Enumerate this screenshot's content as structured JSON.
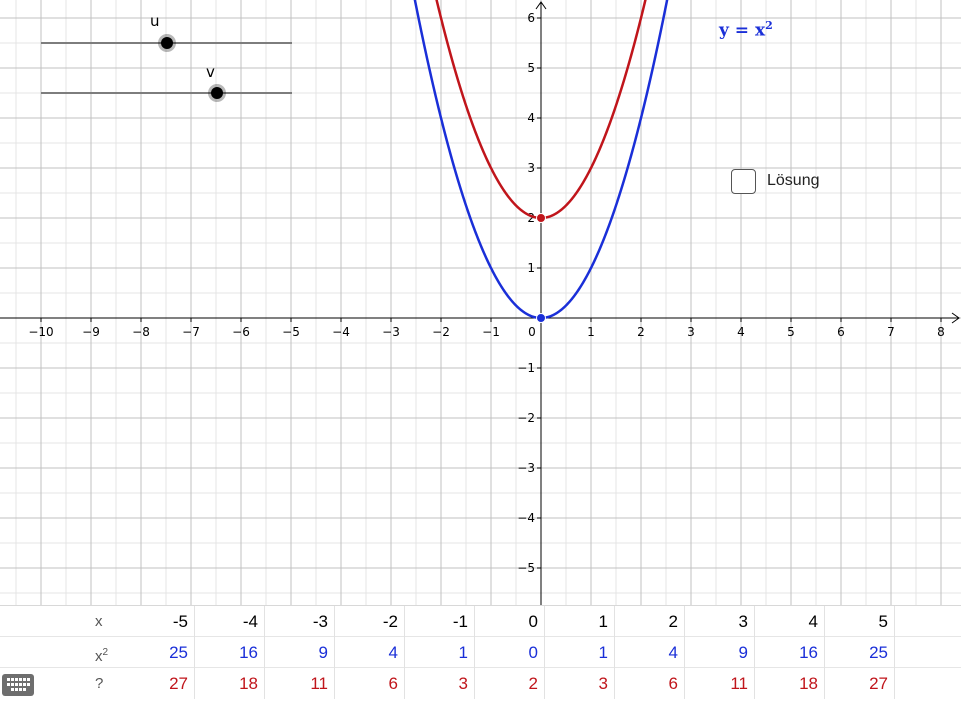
{
  "graph": {
    "x_axis_ticks": [
      "−10",
      "−9",
      "−8",
      "−7",
      "−6",
      "−5",
      "−4",
      "−3",
      "−2",
      "−1",
      "0",
      "1",
      "2",
      "3",
      "4",
      "5",
      "6",
      "7",
      "8"
    ],
    "y_axis_ticks_pos": [
      "1",
      "2",
      "3",
      "4",
      "5",
      "6"
    ],
    "y_axis_ticks_neg": [
      "−1",
      "−2",
      "−3",
      "−4",
      "−5"
    ],
    "x_range": [
      -10.9,
      8.4
    ],
    "y_range": [
      -5.75,
      6.35
    ],
    "grid": true,
    "functions": [
      {
        "name": "blue-parabola",
        "color": "#1a2fd8",
        "a": 1,
        "c": 0
      },
      {
        "name": "red-parabola",
        "color": "#c0151b",
        "a": 1,
        "c": 2
      }
    ],
    "points": [
      {
        "name": "blue-vertex",
        "x": 0,
        "y": 0,
        "color": "#1a2fd8"
      },
      {
        "name": "red-vertex",
        "x": 0,
        "y": 2,
        "color": "#c0151b"
      }
    ]
  },
  "sliders": {
    "u": {
      "label": "u",
      "value_fraction": 0.5
    },
    "v": {
      "label": "v",
      "value_fraction": 0.7
    }
  },
  "func_label": {
    "base": "y = x",
    "exp": "2"
  },
  "solution": {
    "label": "Lösung",
    "checked": false
  },
  "table": {
    "headers": {
      "x": "x",
      "sq_base": "x",
      "sq_exp": "2",
      "q": "?"
    },
    "x": [
      "-5",
      "-4",
      "-3",
      "-2",
      "-1",
      "0",
      "1",
      "2",
      "3",
      "4",
      "5"
    ],
    "sq": [
      "25",
      "16",
      "9",
      "4",
      "1",
      "0",
      "1",
      "4",
      "9",
      "16",
      "25"
    ],
    "q": [
      "27",
      "18",
      "11",
      "6",
      "3",
      "2",
      "3",
      "6",
      "11",
      "18",
      "27"
    ]
  },
  "colors": {
    "blue": "#1a2fd8",
    "red": "#c0151b",
    "grid_major": "#c0c0c0",
    "grid_minor": "#e4e4e4"
  },
  "keyboard_icon": "keyboard-icon"
}
